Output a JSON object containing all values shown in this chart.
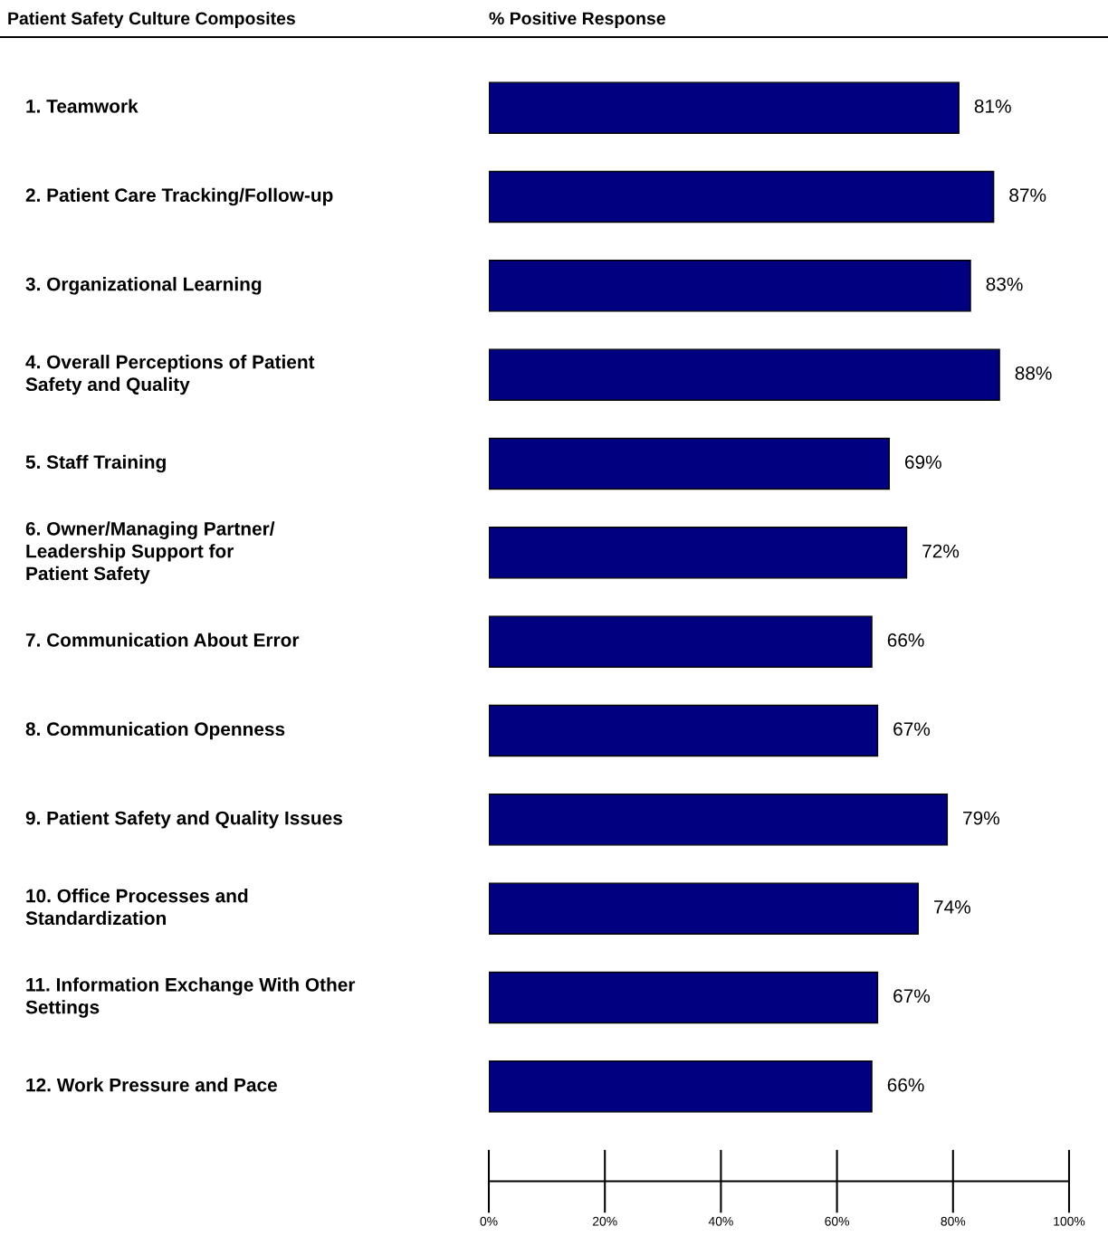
{
  "chart_data": {
    "type": "bar",
    "orientation": "horizontal",
    "title": "Patient Safety Culture Composites",
    "xlabel": "% Positive Response",
    "categories": [
      "1. Teamwork",
      "2. Patient Care Tracking/Follow-up",
      "3. Organizational Learning",
      "4. Overall Perceptions of Patient\nSafety and Quality",
      "5. Staff Training",
      "6. Owner/Managing Partner/\nLeadership Support for\nPatient Safety",
      "7. Communication About Error",
      "8. Communication Openness",
      "9. Patient Safety and Quality Issues",
      "10. Office Processes and\nStandardization",
      "11. Information Exchange With Other\nSettings",
      "12. Work Pressure and Pace"
    ],
    "values": [
      81,
      87,
      83,
      88,
      69,
      72,
      66,
      67,
      79,
      74,
      67,
      66
    ],
    "value_labels": [
      "81%",
      "87%",
      "83%",
      "88%",
      "69%",
      "72%",
      "66%",
      "67%",
      "79%",
      "74%",
      "67%",
      "66%"
    ],
    "color": "#000080",
    "xlim": [
      0,
      100
    ],
    "xticks": [
      {
        "value": 0,
        "label": "0%"
      },
      {
        "value": 20,
        "label": "20%"
      },
      {
        "value": 40,
        "label": "40%"
      },
      {
        "value": 60,
        "label": "60%"
      },
      {
        "value": 80,
        "label": "80%"
      },
      {
        "value": 100,
        "label": "100%"
      }
    ],
    "grid": false
  }
}
